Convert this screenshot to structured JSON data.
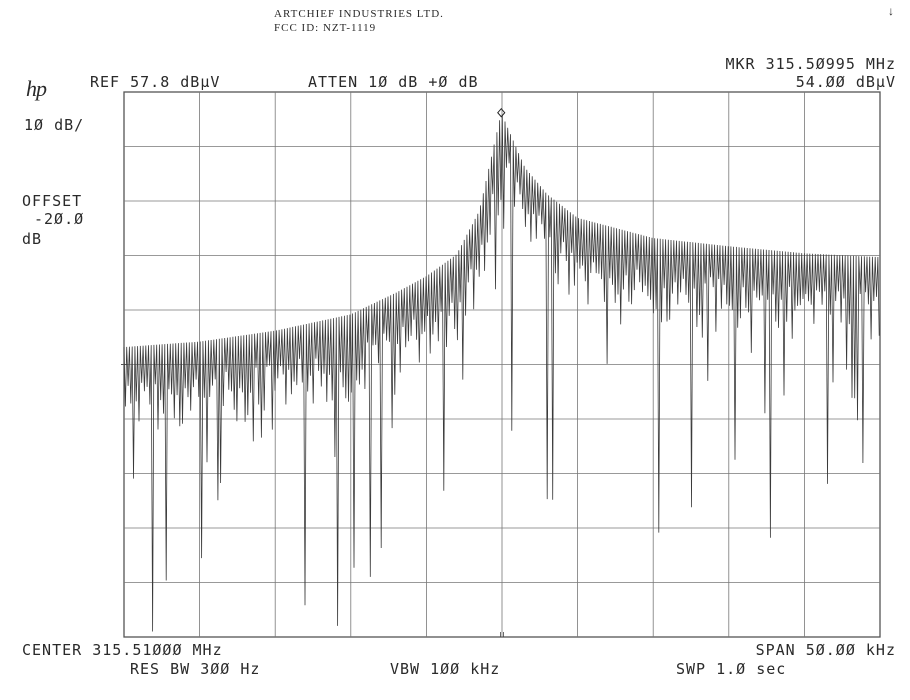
{
  "header": {
    "line1": "ARTCHIEF INDUSTRIES LTD.",
    "line2": "FCC ID:  NZT-1119",
    "corner_mark": "↓"
  },
  "logo": "hp",
  "top": {
    "ref": "REF 57.8 dBµV",
    "atten": "ATTEN 1Ø dB +Ø dB",
    "marker_freq": "MKR 315.5Ø995 MHz",
    "marker_level": "54.ØØ dBµV"
  },
  "left": {
    "scale": "1Ø dB/",
    "offset_label": "OFFSET",
    "offset_value": "-2Ø.Ø",
    "offset_unit": "dB"
  },
  "bottom": {
    "center": "CENTER 315.51ØØØ MHz",
    "span": "SPAN 5Ø.ØØ kHz",
    "res_bw": "RES BW 3ØØ Hz",
    "vbw": "VBW 1ØØ kHz",
    "swp": "SWP 1.Ø  sec"
  },
  "chart_data": {
    "type": "line",
    "x_unit": "MHz",
    "y_unit": "dBµV",
    "center_freq_mhz": 315.51,
    "span_khz": 50.0,
    "ref_level_dbuv": 57.8,
    "scale_db_per_div": 10,
    "x_range_mhz": [
      315.485,
      315.535
    ],
    "y_range_dbuv": [
      -42.2,
      57.8
    ],
    "grid": true,
    "marker": {
      "x_mhz": 315.50995,
      "y_dbuv": 54.0
    },
    "envelope": {
      "x_mhz": [
        315.485,
        315.49,
        315.495,
        315.5,
        315.503,
        315.505,
        315.507,
        315.5085,
        315.50995,
        315.5115,
        315.513,
        315.515,
        315.52,
        315.525,
        315.53,
        315.535
      ],
      "y_dbuv": [
        11.0,
        12.0,
        14.0,
        17.0,
        21.0,
        24.0,
        28.0,
        36.0,
        54.0,
        44.0,
        39.0,
        34.7,
        31.0,
        29.5,
        28.2,
        27.5
      ]
    }
  }
}
